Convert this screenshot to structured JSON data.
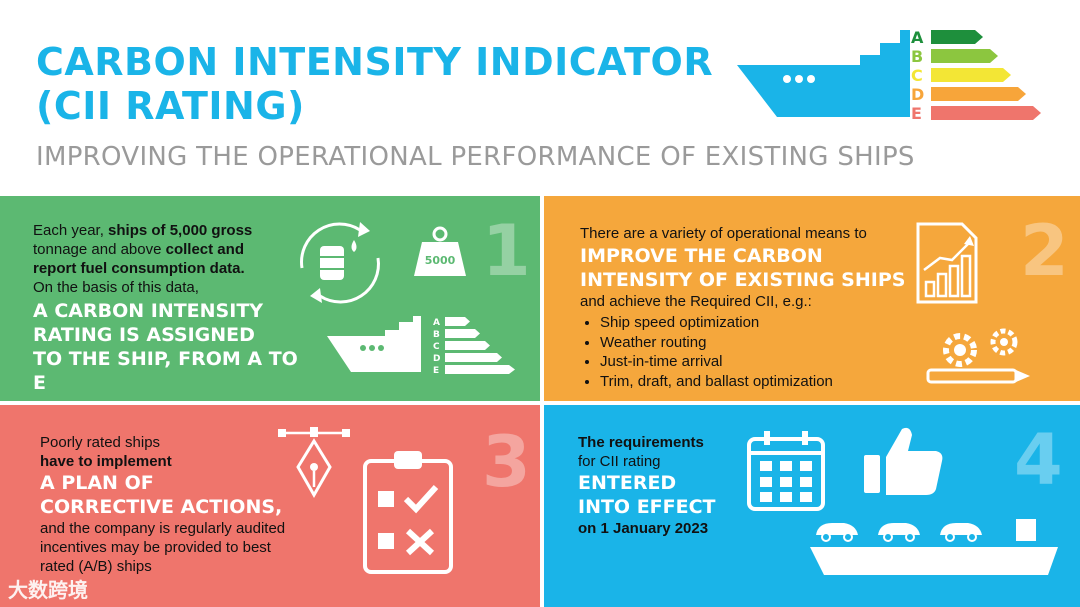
{
  "header": {
    "title_line1": "CARBON INTENSITY INDICATOR",
    "title_line2": "(CII RATING)",
    "subtitle": "IMPROVING THE OPERATIONAL PERFORMANCE OF EXISTING SHIPS",
    "rating_letters": [
      "A",
      "B",
      "C",
      "D",
      "E"
    ]
  },
  "colors": {
    "blue": "#1ab4e8",
    "green": "#5cb972",
    "orange": "#f5a73c",
    "red": "#ef756c",
    "rating_a": "#1e8f3c",
    "rating_b": "#8cc63f",
    "rating_c": "#f3e635",
    "rating_d": "#f7a53a",
    "rating_e": "#ef756c"
  },
  "panel1": {
    "number": "1",
    "intro_1": "Each year, ",
    "intro_bold_1": "ships of 5,000 gross",
    "line2_plain": "tonnage and above ",
    "line2_bold": "collect and",
    "line3_bold": "report fuel consumption data.",
    "line4": "On the basis of this data,",
    "big_1": "A CARBON INTENSITY",
    "big_2": "RATING IS ASSIGNED",
    "big_3": "TO THE SHIP, FROM A TO E",
    "weight_label": "5000",
    "rating_letters": [
      "A",
      "B",
      "C",
      "D",
      "E"
    ]
  },
  "panel2": {
    "number": "2",
    "intro": "There are a variety of operational means to",
    "big_1": "IMPROVE THE CARBON",
    "big_2": "INTENSITY OF EXISTING SHIPS",
    "after": "and achieve the Required CII, e.g.:",
    "bullets": [
      "Ship speed optimization",
      "Weather routing",
      "Just-in-time arrival",
      "Trim, draft, and ballast optimization"
    ]
  },
  "panel3": {
    "number": "3",
    "line1": "Poorly rated ships",
    "line2": "have to implement",
    "big_1": "A PLAN OF",
    "big_2": "CORRECTIVE ACTIONS,",
    "line3": "and the company is regularly audited",
    "line4": "incentives may be provided to best",
    "line5": "rated (A/B) ships"
  },
  "panel4": {
    "number": "4",
    "line1": "The requirements",
    "line2": "for CII rating",
    "big_1": "ENTERED",
    "big_2": "INTO EFFECT",
    "date_line": "on 1 January 2023"
  },
  "watermark": "大数跨境"
}
